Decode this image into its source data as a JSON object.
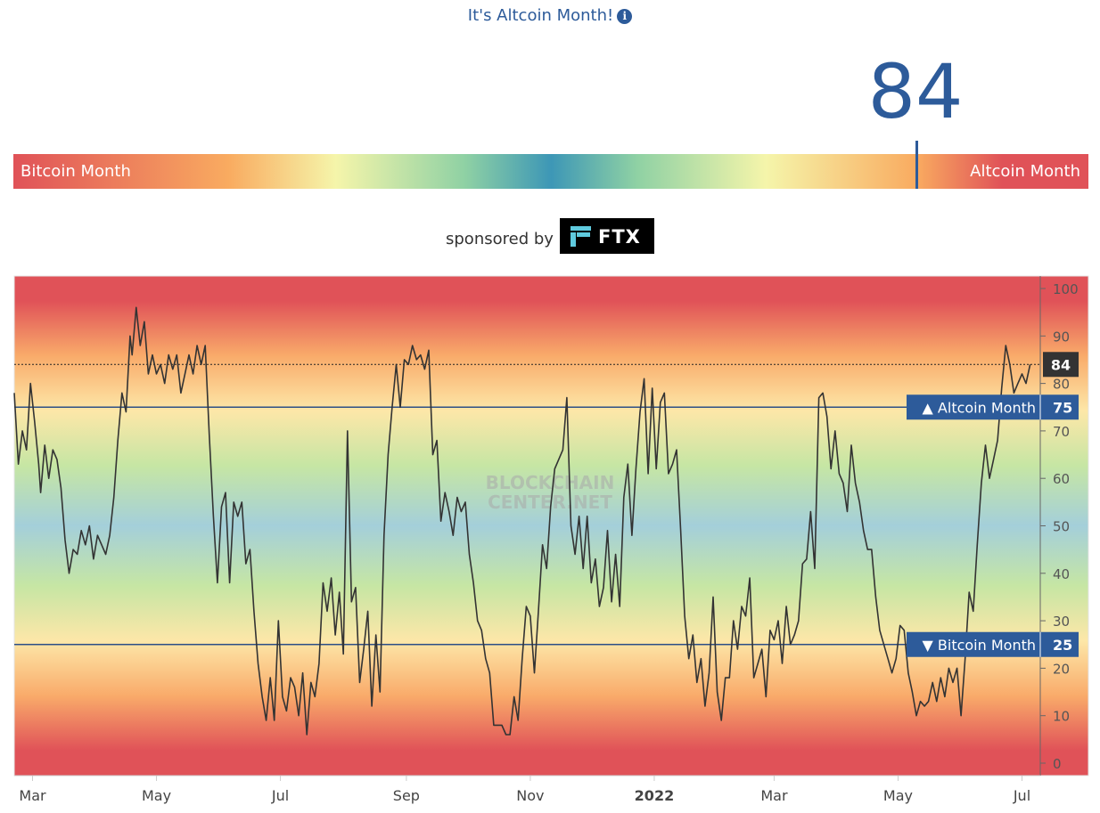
{
  "header": {
    "title": "It's Altcoin Month!",
    "info_icon": "info-icon"
  },
  "gauge": {
    "value": "84",
    "value_number": 84,
    "left_label": "Bitcoin Month",
    "right_label": "Altcoin Month"
  },
  "sponsor": {
    "text": "sponsored by",
    "brand": "FTX"
  },
  "chart_data": {
    "type": "line",
    "watermark_line1": "BLOCKCHAIN",
    "watermark_line2": "CENTER.NET",
    "x_start": "2021-02-20",
    "x_end": "2022-07-10",
    "ylim": [
      -3,
      103
    ],
    "y_ticks": [
      0,
      10,
      20,
      30,
      40,
      50,
      60,
      70,
      80,
      90,
      100
    ],
    "x_ticks": [
      {
        "label": "Mar",
        "date": "2021-03-01"
      },
      {
        "label": "May",
        "date": "2021-05-01"
      },
      {
        "label": "Jul",
        "date": "2021-07-01"
      },
      {
        "label": "Sep",
        "date": "2021-09-01"
      },
      {
        "label": "Nov",
        "date": "2021-11-01"
      },
      {
        "label": "2022",
        "date": "2022-01-01",
        "bold": true
      },
      {
        "label": "Mar",
        "date": "2022-03-01"
      },
      {
        "label": "May",
        "date": "2022-05-01"
      },
      {
        "label": "Jul",
        "date": "2022-07-01"
      }
    ],
    "thresholds": [
      {
        "label": "▲ Altcoin Month",
        "value": 75
      },
      {
        "label": "▼ Bitcoin Month",
        "value": 25
      }
    ],
    "current": {
      "label": "84",
      "value": 84
    },
    "series": [
      {
        "values": [
          [
            "2021-02-20",
            78
          ],
          [
            "2021-02-22",
            63
          ],
          [
            "2021-02-24",
            70
          ],
          [
            "2021-02-26",
            66
          ],
          [
            "2021-02-28",
            80
          ],
          [
            "2021-03-02",
            72
          ],
          [
            "2021-03-04",
            63
          ],
          [
            "2021-03-05",
            57
          ],
          [
            "2021-03-07",
            67
          ],
          [
            "2021-03-09",
            60
          ],
          [
            "2021-03-11",
            66
          ],
          [
            "2021-03-13",
            64
          ],
          [
            "2021-03-15",
            58
          ],
          [
            "2021-03-17",
            47
          ],
          [
            "2021-03-19",
            40
          ],
          [
            "2021-03-21",
            45
          ],
          [
            "2021-03-23",
            44
          ],
          [
            "2021-03-25",
            49
          ],
          [
            "2021-03-27",
            46
          ],
          [
            "2021-03-29",
            50
          ],
          [
            "2021-03-31",
            43
          ],
          [
            "2021-04-02",
            48
          ],
          [
            "2021-04-04",
            46
          ],
          [
            "2021-04-06",
            44
          ],
          [
            "2021-04-08",
            48
          ],
          [
            "2021-04-10",
            56
          ],
          [
            "2021-04-12",
            68
          ],
          [
            "2021-04-14",
            78
          ],
          [
            "2021-04-16",
            74
          ],
          [
            "2021-04-18",
            90
          ],
          [
            "2021-04-19",
            86
          ],
          [
            "2021-04-21",
            96
          ],
          [
            "2021-04-23",
            88
          ],
          [
            "2021-04-25",
            93
          ],
          [
            "2021-04-27",
            82
          ],
          [
            "2021-04-29",
            86
          ],
          [
            "2021-05-01",
            82
          ],
          [
            "2021-05-03",
            84
          ],
          [
            "2021-05-05",
            80
          ],
          [
            "2021-05-07",
            86
          ],
          [
            "2021-05-09",
            83
          ],
          [
            "2021-05-11",
            86
          ],
          [
            "2021-05-13",
            78
          ],
          [
            "2021-05-15",
            82
          ],
          [
            "2021-05-17",
            86
          ],
          [
            "2021-05-19",
            82
          ],
          [
            "2021-05-21",
            88
          ],
          [
            "2021-05-23",
            84
          ],
          [
            "2021-05-25",
            88
          ],
          [
            "2021-05-27",
            69
          ],
          [
            "2021-05-29",
            52
          ],
          [
            "2021-05-31",
            38
          ],
          [
            "2021-06-02",
            54
          ],
          [
            "2021-06-04",
            57
          ],
          [
            "2021-06-06",
            38
          ],
          [
            "2021-06-08",
            55
          ],
          [
            "2021-06-10",
            52
          ],
          [
            "2021-06-12",
            55
          ],
          [
            "2021-06-14",
            42
          ],
          [
            "2021-06-16",
            45
          ],
          [
            "2021-06-18",
            32
          ],
          [
            "2021-06-20",
            21
          ],
          [
            "2021-06-22",
            14
          ],
          [
            "2021-06-24",
            9
          ],
          [
            "2021-06-26",
            18
          ],
          [
            "2021-06-28",
            9
          ],
          [
            "2021-06-30",
            30
          ],
          [
            "2021-07-02",
            14
          ],
          [
            "2021-07-04",
            11
          ],
          [
            "2021-07-06",
            18
          ],
          [
            "2021-07-08",
            16
          ],
          [
            "2021-07-10",
            10
          ],
          [
            "2021-07-12",
            19
          ],
          [
            "2021-07-14",
            6
          ],
          [
            "2021-07-16",
            17
          ],
          [
            "2021-07-18",
            14
          ],
          [
            "2021-07-20",
            21
          ],
          [
            "2021-07-22",
            38
          ],
          [
            "2021-07-24",
            32
          ],
          [
            "2021-07-26",
            39
          ],
          [
            "2021-07-28",
            27
          ],
          [
            "2021-07-30",
            36
          ],
          [
            "2021-08-01",
            23
          ],
          [
            "2021-08-03",
            70
          ],
          [
            "2021-08-05",
            34
          ],
          [
            "2021-08-07",
            37
          ],
          [
            "2021-08-09",
            17
          ],
          [
            "2021-08-11",
            24
          ],
          [
            "2021-08-13",
            32
          ],
          [
            "2021-08-15",
            12
          ],
          [
            "2021-08-17",
            27
          ],
          [
            "2021-08-19",
            15
          ],
          [
            "2021-08-21",
            48
          ],
          [
            "2021-08-23",
            65
          ],
          [
            "2021-08-25",
            75
          ],
          [
            "2021-08-27",
            84
          ],
          [
            "2021-08-29",
            75
          ],
          [
            "2021-08-31",
            85
          ],
          [
            "2021-09-02",
            84
          ],
          [
            "2021-09-04",
            88
          ],
          [
            "2021-09-06",
            85
          ],
          [
            "2021-09-08",
            86
          ],
          [
            "2021-09-10",
            83
          ],
          [
            "2021-09-12",
            87
          ],
          [
            "2021-09-14",
            65
          ],
          [
            "2021-09-16",
            68
          ],
          [
            "2021-09-18",
            51
          ],
          [
            "2021-09-20",
            57
          ],
          [
            "2021-09-22",
            53
          ],
          [
            "2021-09-24",
            48
          ],
          [
            "2021-09-26",
            56
          ],
          [
            "2021-09-28",
            53
          ],
          [
            "2021-09-30",
            55
          ],
          [
            "2021-10-02",
            44
          ],
          [
            "2021-10-04",
            38
          ],
          [
            "2021-10-06",
            30
          ],
          [
            "2021-10-08",
            28
          ],
          [
            "2021-10-10",
            22
          ],
          [
            "2021-10-12",
            19
          ],
          [
            "2021-10-14",
            8
          ],
          [
            "2021-10-16",
            8
          ],
          [
            "2021-10-18",
            8
          ],
          [
            "2021-10-20",
            6
          ],
          [
            "2021-10-22",
            6
          ],
          [
            "2021-10-24",
            14
          ],
          [
            "2021-10-26",
            9
          ],
          [
            "2021-10-28",
            22
          ],
          [
            "2021-10-30",
            33
          ],
          [
            "2021-11-01",
            31
          ],
          [
            "2021-11-03",
            19
          ],
          [
            "2021-11-05",
            32
          ],
          [
            "2021-11-07",
            46
          ],
          [
            "2021-11-09",
            41
          ],
          [
            "2021-11-11",
            54
          ],
          [
            "2021-11-13",
            62
          ],
          [
            "2021-11-15",
            64
          ],
          [
            "2021-11-17",
            66
          ],
          [
            "2021-11-19",
            77
          ],
          [
            "2021-11-21",
            50
          ],
          [
            "2021-11-23",
            44
          ],
          [
            "2021-11-25",
            52
          ],
          [
            "2021-11-27",
            41
          ],
          [
            "2021-11-29",
            52
          ],
          [
            "2021-12-01",
            38
          ],
          [
            "2021-12-03",
            43
          ],
          [
            "2021-12-05",
            33
          ],
          [
            "2021-12-07",
            37
          ],
          [
            "2021-12-09",
            49
          ],
          [
            "2021-12-11",
            34
          ],
          [
            "2021-12-13",
            44
          ],
          [
            "2021-12-15",
            33
          ],
          [
            "2021-12-17",
            56
          ],
          [
            "2021-12-19",
            63
          ],
          [
            "2021-12-21",
            48
          ],
          [
            "2021-12-23",
            62
          ],
          [
            "2021-12-25",
            74
          ],
          [
            "2021-12-27",
            81
          ],
          [
            "2021-12-29",
            61
          ],
          [
            "2021-12-31",
            79
          ],
          [
            "2022-01-02",
            62
          ],
          [
            "2022-01-04",
            76
          ],
          [
            "2022-01-06",
            78
          ],
          [
            "2022-01-08",
            61
          ],
          [
            "2022-01-10",
            63
          ],
          [
            "2022-01-12",
            66
          ],
          [
            "2022-01-14",
            49
          ],
          [
            "2022-01-16",
            31
          ],
          [
            "2022-01-18",
            22
          ],
          [
            "2022-01-20",
            27
          ],
          [
            "2022-01-22",
            17
          ],
          [
            "2022-01-24",
            22
          ],
          [
            "2022-01-26",
            12
          ],
          [
            "2022-01-28",
            19
          ],
          [
            "2022-01-30",
            35
          ],
          [
            "2022-02-01",
            15
          ],
          [
            "2022-02-03",
            9
          ],
          [
            "2022-02-05",
            18
          ],
          [
            "2022-02-07",
            18
          ],
          [
            "2022-02-09",
            30
          ],
          [
            "2022-02-11",
            24
          ],
          [
            "2022-02-13",
            33
          ],
          [
            "2022-02-15",
            31
          ],
          [
            "2022-02-17",
            39
          ],
          [
            "2022-02-19",
            18
          ],
          [
            "2022-02-21",
            21
          ],
          [
            "2022-02-23",
            24
          ],
          [
            "2022-02-25",
            14
          ],
          [
            "2022-02-27",
            28
          ],
          [
            "2022-03-01",
            26
          ],
          [
            "2022-03-03",
            30
          ],
          [
            "2022-03-05",
            21
          ],
          [
            "2022-03-07",
            33
          ],
          [
            "2022-03-09",
            25
          ],
          [
            "2022-03-11",
            27
          ],
          [
            "2022-03-13",
            30
          ],
          [
            "2022-03-15",
            42
          ],
          [
            "2022-03-17",
            43
          ],
          [
            "2022-03-19",
            53
          ],
          [
            "2022-03-21",
            41
          ],
          [
            "2022-03-23",
            77
          ],
          [
            "2022-03-25",
            78
          ],
          [
            "2022-03-27",
            73
          ],
          [
            "2022-03-29",
            62
          ],
          [
            "2022-03-31",
            70
          ],
          [
            "2022-04-02",
            61
          ],
          [
            "2022-04-04",
            59
          ],
          [
            "2022-04-06",
            53
          ],
          [
            "2022-04-08",
            67
          ],
          [
            "2022-04-10",
            59
          ],
          [
            "2022-04-12",
            55
          ],
          [
            "2022-04-14",
            49
          ],
          [
            "2022-04-16",
            45
          ],
          [
            "2022-04-18",
            45
          ],
          [
            "2022-04-20",
            35
          ],
          [
            "2022-04-22",
            28
          ],
          [
            "2022-04-24",
            25
          ],
          [
            "2022-04-26",
            22
          ],
          [
            "2022-04-28",
            19
          ],
          [
            "2022-04-30",
            22
          ],
          [
            "2022-05-02",
            29
          ],
          [
            "2022-05-04",
            28
          ],
          [
            "2022-05-06",
            19
          ],
          [
            "2022-05-08",
            15
          ],
          [
            "2022-05-10",
            10
          ],
          [
            "2022-05-12",
            13
          ],
          [
            "2022-05-14",
            12
          ],
          [
            "2022-05-16",
            13
          ],
          [
            "2022-05-18",
            17
          ],
          [
            "2022-05-20",
            13
          ],
          [
            "2022-05-22",
            18
          ],
          [
            "2022-05-24",
            14
          ],
          [
            "2022-05-26",
            20
          ],
          [
            "2022-05-28",
            17
          ],
          [
            "2022-05-30",
            20
          ],
          [
            "2022-06-01",
            10
          ],
          [
            "2022-06-03",
            22
          ],
          [
            "2022-06-05",
            36
          ],
          [
            "2022-06-07",
            32
          ],
          [
            "2022-06-09",
            46
          ],
          [
            "2022-06-11",
            59
          ],
          [
            "2022-06-13",
            67
          ],
          [
            "2022-06-15",
            60
          ],
          [
            "2022-06-17",
            64
          ],
          [
            "2022-06-19",
            68
          ],
          [
            "2022-06-21",
            79
          ],
          [
            "2022-06-23",
            88
          ],
          [
            "2022-06-25",
            84
          ],
          [
            "2022-06-27",
            78
          ],
          [
            "2022-06-29",
            80
          ],
          [
            "2022-07-01",
            82
          ],
          [
            "2022-07-03",
            80
          ],
          [
            "2022-07-05",
            84
          ]
        ]
      }
    ]
  }
}
